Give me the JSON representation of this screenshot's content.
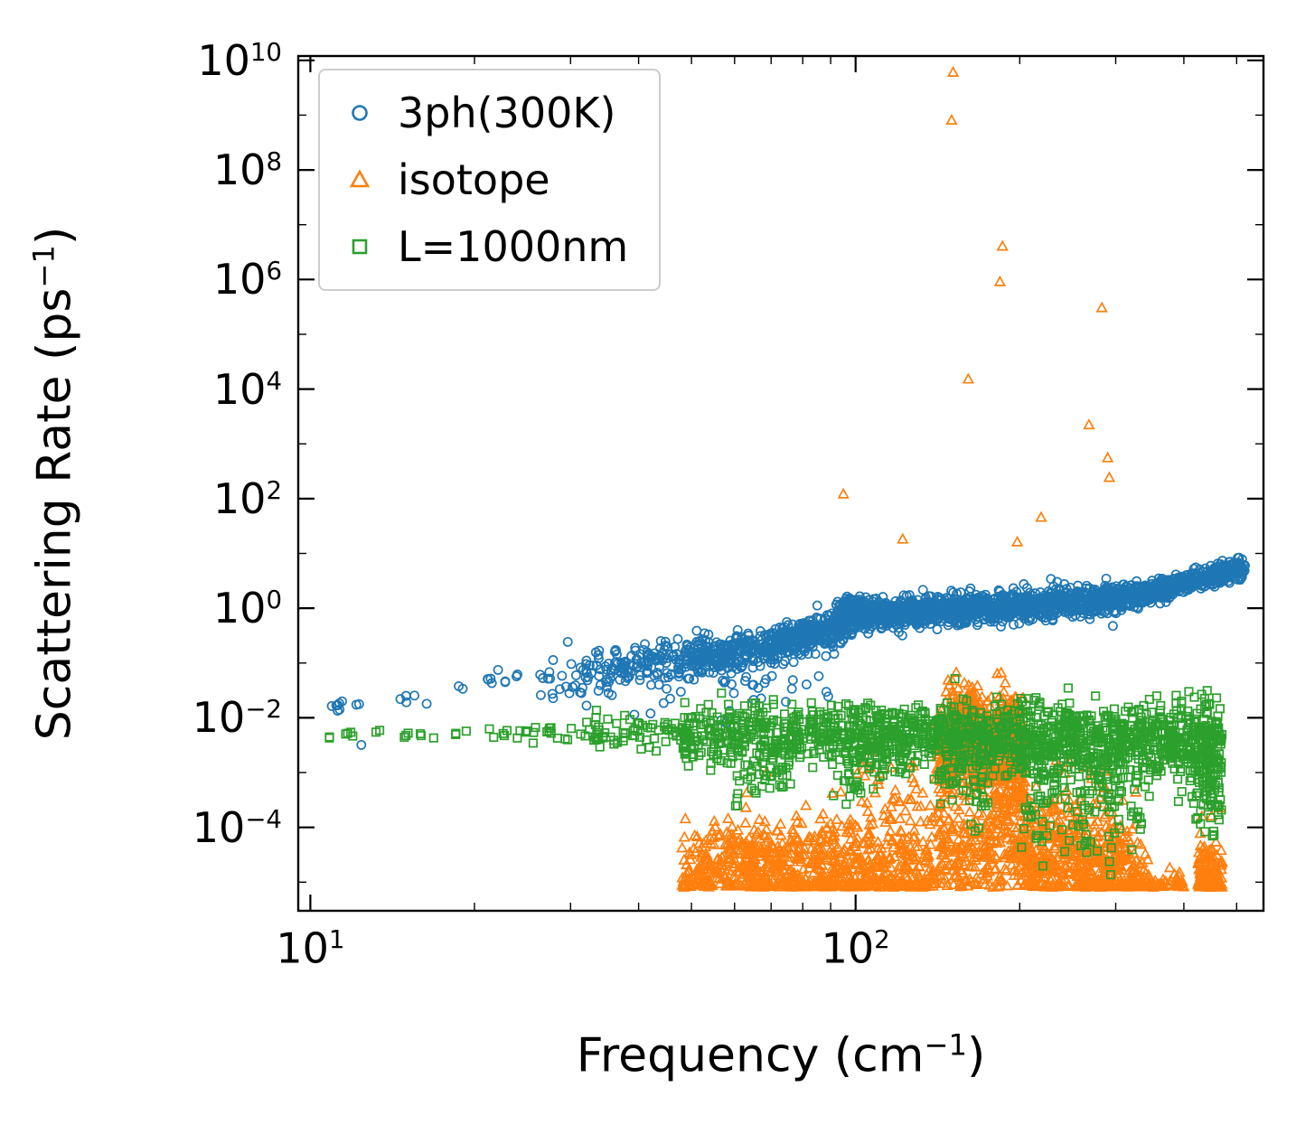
{
  "chart_data": {
    "type": "scatter",
    "title": "",
    "xlabel": "Frequency (cm⁻¹)",
    "ylabel": "Scattering Rate (ps⁻¹)",
    "xlabel_parts": {
      "base": "Frequency (cm",
      "exp": "−1",
      "close": ")"
    },
    "ylabel_parts": {
      "base": "Scattering Rate (ps",
      "exp": "−1",
      "close": ")"
    },
    "xscale": "log",
    "yscale": "log",
    "xlim": [
      9.5,
      560
    ],
    "ylim": [
      3e-06,
      12000000000.0
    ],
    "y_floor": 8e-06,
    "x_tick_exponents": [
      1,
      2
    ],
    "x_minor_ticks": [
      20,
      30,
      40,
      50,
      60,
      70,
      80,
      90,
      200,
      300,
      400,
      500
    ],
    "y_tick_exponents": [
      -4,
      -2,
      0,
      2,
      4,
      6,
      8,
      10
    ],
    "y_minor_exponents": [
      -5,
      -3,
      -1,
      1,
      3,
      5,
      7,
      9
    ],
    "grid": false,
    "seed": 1337,
    "legend": {
      "position": "upper-left",
      "frame": true
    },
    "series": [
      {
        "id": "3ph-300K",
        "name": "3ph(300K)",
        "marker": "circle",
        "color": "#1f77b4",
        "clusters": [
          {
            "x": [
              10.8,
              11.6
            ],
            "y": [
              0.014,
              0.018
            ],
            "count": 7,
            "spread": 0.07
          },
          {
            "x": [
              12.0,
              12.7
            ],
            "y": [
              0.018,
              0.018
            ],
            "count": 2,
            "spread": 0.05
          },
          {
            "x": [
              14.6,
              16.8
            ],
            "y": [
              0.022,
              0.034
            ],
            "count": 5,
            "spread": 0.1
          },
          {
            "x": [
              18.3,
              19.6
            ],
            "y": [
              0.038,
              0.042
            ],
            "count": 2,
            "spread": 0.06
          },
          {
            "x": [
              21,
              24.5
            ],
            "y": [
              0.052,
              0.066
            ],
            "count": 9,
            "spread": 0.13
          },
          {
            "x": [
              26,
              30
            ],
            "y": [
              0.035,
              0.05
            ],
            "count": 14,
            "spread": 0.3
          },
          {
            "x": [
              30,
              36
            ],
            "y": [
              0.05,
              0.08
            ],
            "count": 40,
            "spread": 0.25
          },
          {
            "x": [
              34,
              46
            ],
            "y": [
              0.015,
              0.02
            ],
            "count": 8,
            "spread": 0.18
          },
          {
            "x": [
              36,
              50
            ],
            "y": [
              0.08,
              0.12
            ],
            "count": 120,
            "spread": 0.2
          },
          {
            "x": [
              50,
              70
            ],
            "y": [
              0.12,
              0.2
            ],
            "count": 230,
            "spread": 0.17
          },
          {
            "x": [
              55,
              90
            ],
            "y": [
              0.03,
              0.05
            ],
            "count": 25,
            "spread": 0.2
          },
          {
            "x": [
              70,
              100
            ],
            "y": [
              0.2,
              0.55
            ],
            "count": 330,
            "spread": 0.16
          },
          {
            "x": [
              92,
              108
            ],
            "y": [
              1.0,
              1.1
            ],
            "count": 80,
            "spread": 0.1
          },
          {
            "x": [
              100,
              140
            ],
            "y": [
              0.75,
              0.9
            ],
            "count": 380,
            "spread": 0.13
          },
          {
            "x": [
              140,
              200
            ],
            "y": [
              0.9,
              1.1
            ],
            "count": 420,
            "spread": 0.13
          },
          {
            "x": [
              200,
              300
            ],
            "y": [
              1.1,
              1.5
            ],
            "count": 430,
            "spread": 0.13
          },
          {
            "x": [
              300,
              380
            ],
            "y": [
              1.6,
              2.2
            ],
            "count": 260,
            "spread": 0.11
          },
          {
            "x": [
              380,
              520
            ],
            "y": [
              2.5,
              5.5
            ],
            "count": 270,
            "spread": 0.1
          }
        ],
        "points": [
          [
            12.4,
            0.0032
          ]
        ]
      },
      {
        "id": "isotope",
        "name": "isotope",
        "marker": "triangle",
        "color": "#ff7f0e",
        "clusters": [
          {
            "x": [
              48,
              62
            ],
            "y": [
              1.2e-05,
              2.5e-05
            ],
            "count": 190,
            "spread": 0.38
          },
          {
            "x": [
              62,
              78
            ],
            "y": [
              2.5e-05,
              1.8e-05
            ],
            "count": 210,
            "spread": 0.42
          },
          {
            "x": [
              78,
              100
            ],
            "y": [
              1.8e-05,
              1.4e-05
            ],
            "count": 210,
            "spread": 0.45
          },
          {
            "x": [
              100,
              140
            ],
            "y": [
              1.4e-05,
              1.6e-05
            ],
            "count": 240,
            "spread": 0.5
          },
          {
            "x": [
              140,
              178
            ],
            "y": [
              0.002,
              0.004
            ],
            "count": 340,
            "spread": 0.5
          },
          {
            "x": [
              150,
              165
            ],
            "y": [
              0.008,
              0.009
            ],
            "count": 130,
            "spread": 0.28
          },
          {
            "x": [
              183,
              200
            ],
            "y": [
              0.007,
              0.008
            ],
            "count": 90,
            "spread": 0.25
          },
          {
            "x": [
              178,
              205
            ],
            "y": [
              0.0015,
              0.001
            ],
            "count": 220,
            "spread": 0.55
          },
          {
            "x": [
              140,
              210
            ],
            "y": [
              4e-05,
              4e-05
            ],
            "count": 260,
            "spread": 0.5
          },
          {
            "x": [
              205,
              260
            ],
            "y": [
              3e-05,
              2.5e-05
            ],
            "count": 260,
            "spread": 0.5
          },
          {
            "x": [
              260,
              310
            ],
            "y": [
              2e-05,
              1.5e-05
            ],
            "count": 190,
            "spread": 0.45
          },
          {
            "x": [
              310,
              345
            ],
            "y": [
              1e-05,
              9e-06
            ],
            "count": 90,
            "spread": 0.35
          },
          {
            "x": [
              345,
              400
            ],
            "y": [
              7e-06,
              6e-06
            ],
            "count": 40,
            "spread": 0.25
          },
          {
            "x": [
              425,
              470
            ],
            "y": [
              8e-06,
              7e-06
            ],
            "count": 210,
            "spread": 0.45
          },
          {
            "x": [
              90,
              140
            ],
            "y": [
              0.0002,
              0.0002
            ],
            "count": 40,
            "spread": 0.4
          },
          {
            "x": [
              210,
              330
            ],
            "y": [
              0.0002,
              0.00015
            ],
            "count": 50,
            "spread": 0.45
          },
          {
            "x": [
              100,
              130
            ],
            "y": [
              0.001,
              0.001
            ],
            "count": 12,
            "spread": 0.3
          }
        ],
        "points": [
          [
            151,
            6000000000.0
          ],
          [
            150,
            800000000.0
          ],
          [
            186,
            4000000.0
          ],
          [
            184,
            900000.0
          ],
          [
            283,
            300000.0
          ],
          [
            161,
            15000.0
          ],
          [
            268,
            2200.0
          ],
          [
            290,
            550
          ],
          [
            292,
            240
          ],
          [
            95,
            120
          ],
          [
            122,
            18
          ],
          [
            198,
            16
          ],
          [
            219,
            45
          ]
        ]
      },
      {
        "id": "L-1000nm",
        "name": "L=1000nm",
        "marker": "square",
        "color": "#2ca02c",
        "clusters": [
          {
            "x": [
              10.8,
              12.0
            ],
            "y": [
              0.0046,
              0.0046
            ],
            "count": 6,
            "spread": 0.04
          },
          {
            "x": [
              13.0,
              13.6
            ],
            "y": [
              0.0056,
              0.0056
            ],
            "count": 2,
            "spread": 0.03
          },
          {
            "x": [
              14.8,
              17.0
            ],
            "y": [
              0.0048,
              0.0048
            ],
            "count": 6,
            "spread": 0.04
          },
          {
            "x": [
              18.0,
              19.6
            ],
            "y": [
              0.005,
              0.005
            ],
            "count": 3,
            "spread": 0.04
          },
          {
            "x": [
              21,
              25
            ],
            "y": [
              0.005,
              0.0052
            ],
            "count": 9,
            "spread": 0.08
          },
          {
            "x": [
              25.5,
              33
            ],
            "y": [
              0.005,
              0.0058
            ],
            "count": 16,
            "spread": 0.1
          },
          {
            "x": [
              33,
              48
            ],
            "y": [
              0.0052,
              0.0058
            ],
            "count": 60,
            "spread": 0.16
          },
          {
            "x": [
              48,
              90
            ],
            "y": [
              0.005,
              0.005
            ],
            "count": 310,
            "spread": 0.26
          },
          {
            "x": [
              90,
              160
            ],
            "y": [
              0.0045,
              0.0045
            ],
            "count": 430,
            "spread": 0.3
          },
          {
            "x": [
              160,
              300
            ],
            "y": [
              0.004,
              0.004
            ],
            "count": 530,
            "spread": 0.32
          },
          {
            "x": [
              300,
              380
            ],
            "y": [
              0.0038,
              0.0035
            ],
            "count": 190,
            "spread": 0.33
          },
          {
            "x": [
              380,
              470
            ],
            "y": [
              0.0035,
              0.003
            ],
            "count": 230,
            "spread": 0.38
          },
          {
            "x": [
              60,
              76
            ],
            "y": [
              0.0009,
              0.0009
            ],
            "count": 45,
            "spread": 0.3
          },
          {
            "x": [
              95,
              110
            ],
            "y": [
              0.0008,
              0.0008
            ],
            "count": 25,
            "spread": 0.3
          },
          {
            "x": [
              140,
              175
            ],
            "y": [
              0.0006,
              0.0006
            ],
            "count": 45,
            "spread": 0.4
          },
          {
            "x": [
              200,
              290
            ],
            "y": [
              0.0004,
              0.00035
            ],
            "count": 90,
            "spread": 0.45
          },
          {
            "x": [
              290,
              330
            ],
            "y": [
              0.00025,
              0.00025
            ],
            "count": 30,
            "spread": 0.4
          },
          {
            "x": [
              420,
              470
            ],
            "y": [
              0.0005,
              0.0004
            ],
            "count": 60,
            "spread": 0.45
          },
          {
            "x": [
              210,
              300
            ],
            "y": [
              6e-05,
              6e-05
            ],
            "count": 12,
            "spread": 0.25
          },
          {
            "x": [
              320,
              340
            ],
            "y": [
              8e-05,
              8e-05
            ],
            "count": 5,
            "spread": 0.2
          }
        ],
        "points": []
      }
    ]
  }
}
